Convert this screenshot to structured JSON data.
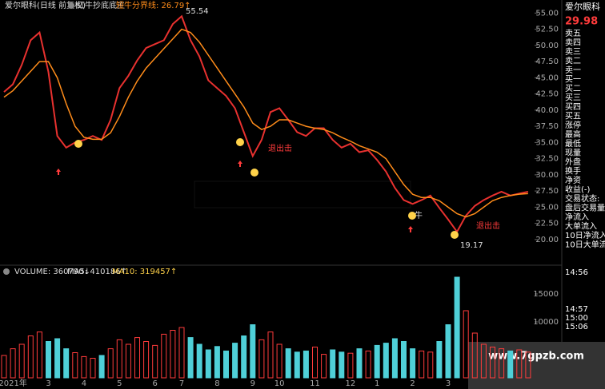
{
  "chart_data": {
    "type": "stock",
    "title": "爱尔眼科(日线 前复权)",
    "indicator": "红牛抄底底主",
    "indicator_value": "短牛分界线: 26.79↑",
    "categories": [
      null,
      "2021年",
      null,
      null,
      null,
      "3",
      null,
      null,
      null,
      "4",
      null,
      null,
      null,
      "5",
      null,
      null,
      null,
      "6",
      null,
      null,
      "7",
      null,
      null,
      null,
      "8",
      null,
      null,
      null,
      "9",
      null,
      null,
      "10",
      null,
      null,
      null,
      "11",
      null,
      null,
      null,
      "12",
      null,
      null,
      "1",
      null,
      null,
      null,
      "2",
      null,
      null,
      null,
      "3",
      null,
      null,
      null,
      null,
      null,
      null,
      null,
      null,
      null
    ],
    "series": [
      {
        "name": "收盘",
        "color": "#e8312f",
        "values": [
          42.8,
          44,
          47,
          50.8,
          52,
          45.9,
          36,
          34.2,
          35,
          35.4,
          36,
          35.4,
          38.5,
          43.4,
          45.3,
          47.7,
          49.6,
          50.2,
          50.8,
          53.3,
          54.5,
          50.8,
          48.3,
          44.6,
          43.4,
          42.2,
          40.3,
          36.6,
          32.9,
          35.4,
          39.7,
          40.3,
          38.5,
          36.6,
          36,
          37.2,
          37.2,
          35.4,
          34.2,
          34.8,
          33.5,
          33.8,
          32.3,
          30.5,
          28,
          26.1,
          25.5,
          26.1,
          26.8,
          24.9,
          23.1,
          21.2,
          23.7,
          25.2,
          26.1,
          26.8,
          27.4,
          26.8,
          27.1,
          27.4
        ]
      },
      {
        "name": "均线",
        "color": "#ff8c1a",
        "values": [
          42,
          43,
          44.5,
          46,
          47.5,
          47.5,
          45,
          41,
          37.5,
          35.8,
          35.5,
          35.5,
          36.5,
          39,
          42,
          44.5,
          46.5,
          48,
          49.5,
          51,
          52.5,
          52,
          50.5,
          48.5,
          46.5,
          44.5,
          42.5,
          40.5,
          38,
          37,
          37.5,
          38.5,
          38.5,
          38,
          37.5,
          37.2,
          37,
          36.5,
          35.8,
          35.2,
          34.5,
          34,
          33.5,
          32.5,
          30.5,
          28.5,
          27,
          26.5,
          26.5,
          26,
          25,
          24,
          23.5,
          24,
          25,
          26,
          26.5,
          26.8,
          27,
          27.1
        ]
      }
    ],
    "ylim": [
      16.9,
      56.4
    ],
    "yticks": [
      {
        "value": 20,
        "label": "20.00"
      },
      {
        "value": 22.5,
        "label": "22.50"
      },
      {
        "value": 25,
        "label": "25.00"
      },
      {
        "value": 27.5,
        "label": "27.50"
      },
      {
        "value": 30,
        "label": "30.00"
      },
      {
        "value": 32.5,
        "label": "32.50"
      },
      {
        "value": 35,
        "label": "35.00"
      },
      {
        "value": 37.5,
        "label": "37.50"
      },
      {
        "value": 40,
        "label": "40.00"
      },
      {
        "value": 42.5,
        "label": "42.50"
      },
      {
        "value": 45,
        "label": "45.00"
      },
      {
        "value": 47.5,
        "label": "47.50"
      },
      {
        "value": 50,
        "label": "50.00"
      },
      {
        "value": 52.5,
        "label": "52.50"
      },
      {
        "value": 55,
        "label": "55.00"
      }
    ],
    "annotations": [
      "55.54",
      "19.17",
      "退出击",
      "退出击",
      "牛"
    ],
    "volume": {
      "labels": [
        "VOLUME: 360790↓",
        "MA5: 410186↑",
        "MA10: 319457↑"
      ],
      "up_color": "#ff3b3b",
      "down_color": "#4fd0d8",
      "values": [
        4000,
        5200,
        6000,
        7500,
        8200,
        6500,
        7000,
        5200,
        4500,
        3800,
        3500,
        4000,
        5200,
        6800,
        6000,
        7200,
        6500,
        5800,
        7800,
        8500,
        9000,
        7200,
        6000,
        5000,
        5600,
        4800,
        6200,
        7500,
        9500,
        6800,
        8200,
        6000,
        5200,
        4600,
        4800,
        5500,
        4200,
        5000,
        4600,
        4400,
        5200,
        4800,
        5800,
        6200,
        7000,
        6500,
        5200,
        4800,
        4600,
        6500,
        9500,
        18000,
        12000,
        8000,
        6000,
        5500,
        5200,
        4800,
        5000,
        4600
      ],
      "ylim": [
        0,
        18500
      ],
      "yticks": [
        10000,
        15000
      ]
    }
  },
  "quote_panel": {
    "name": "爱尔眼科",
    "price": "29.98",
    "rows": [
      "卖五",
      "卖四",
      "卖三",
      "卖二",
      "卖一",
      "买一",
      "买二",
      "买三",
      "买四",
      "买五",
      "涨停",
      "最高",
      "最低",
      "现量",
      "外盘",
      "换手",
      "净资",
      "收益(-)",
      "交易状态:",
      "盘后交易量",
      "净流入",
      "大单流入",
      "10日净流入",
      "10日大单流"
    ],
    "times": [
      "14:56",
      "14:57",
      "15:00",
      "15:06"
    ]
  },
  "watermark": "www.7gpzb.com"
}
